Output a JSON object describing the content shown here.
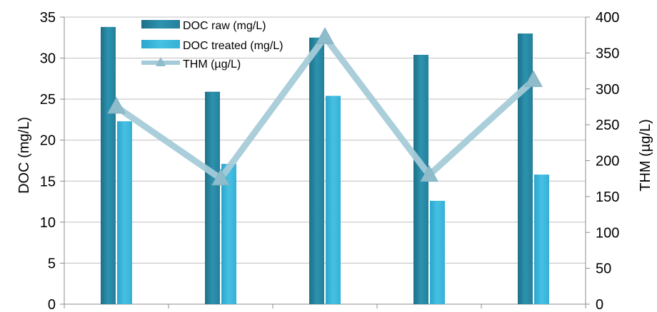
{
  "chart_data": {
    "type": "bar",
    "title": "",
    "categories": [
      "",
      "",
      "",
      "",
      ""
    ],
    "series": [
      {
        "name": "DOC raw (mg/L)",
        "type": "bar",
        "axis": "left",
        "values": [
          33.8,
          25.9,
          32.5,
          30.4,
          33.0
        ],
        "color": "#2a8aa6"
      },
      {
        "name": "DOC treated (mg/L)",
        "type": "bar",
        "axis": "left",
        "values": [
          22.3,
          17.1,
          25.4,
          12.6,
          15.8
        ],
        "color": "#3bb4d8"
      },
      {
        "name": "THM (µg/L)",
        "type": "line",
        "axis": "right",
        "marker": "triangle",
        "values": [
          275,
          175,
          372,
          180,
          312
        ],
        "color": "#a5cbd8"
      }
    ],
    "ylabel": "DOC (mg/L)",
    "y2label": "THM (µg/L)",
    "ylim": [
      0,
      35
    ],
    "y2lim": [
      0,
      400
    ],
    "yticks": [
      "0",
      "5",
      "10",
      "15",
      "20",
      "25",
      "30",
      "35"
    ],
    "y2ticks": [
      "0",
      "50",
      "100",
      "150",
      "200",
      "250",
      "300",
      "350",
      "400"
    ],
    "grid": true,
    "legend": "top-center"
  }
}
